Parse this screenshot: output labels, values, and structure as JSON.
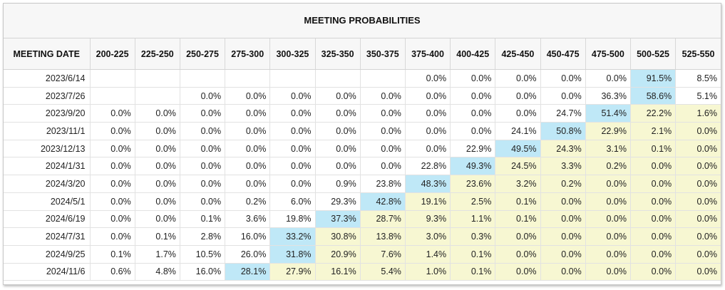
{
  "title": "MEETING PROBABILITIES",
  "colors": {
    "max_highlight": "#bfe8f7",
    "upper_highlight": "#f7f7d2",
    "header_bg": "#f7f7f7"
  },
  "chart_data": {
    "type": "table",
    "title": "MEETING PROBABILITIES",
    "columns": [
      "MEETING DATE",
      "200-225",
      "225-250",
      "250-275",
      "275-300",
      "300-325",
      "325-350",
      "350-375",
      "375-400",
      "400-425",
      "425-450",
      "450-475",
      "475-500",
      "500-525",
      "525-550"
    ],
    "rows": [
      {
        "date": "2023/6/14",
        "values": [
          "",
          "",
          "",
          "",
          "",
          "",
          "",
          "0.0%",
          "0.0%",
          "0.0%",
          "0.0%",
          "0.0%",
          "91.5%",
          "8.5%"
        ]
      },
      {
        "date": "2023/7/26",
        "values": [
          "",
          "",
          "0.0%",
          "0.0%",
          "0.0%",
          "0.0%",
          "0.0%",
          "0.0%",
          "0.0%",
          "0.0%",
          "0.0%",
          "36.3%",
          "58.6%",
          "5.1%"
        ]
      },
      {
        "date": "2023/9/20",
        "values": [
          "0.0%",
          "0.0%",
          "0.0%",
          "0.0%",
          "0.0%",
          "0.0%",
          "0.0%",
          "0.0%",
          "0.0%",
          "0.0%",
          "24.7%",
          "51.4%",
          "22.2%",
          "1.6%"
        ]
      },
      {
        "date": "2023/11/1",
        "values": [
          "0.0%",
          "0.0%",
          "0.0%",
          "0.0%",
          "0.0%",
          "0.0%",
          "0.0%",
          "0.0%",
          "0.0%",
          "24.1%",
          "50.8%",
          "22.9%",
          "2.1%",
          "0.0%"
        ]
      },
      {
        "date": "2023/12/13",
        "values": [
          "0.0%",
          "0.0%",
          "0.0%",
          "0.0%",
          "0.0%",
          "0.0%",
          "0.0%",
          "0.0%",
          "22.9%",
          "49.5%",
          "24.3%",
          "3.1%",
          "0.1%",
          "0.0%"
        ]
      },
      {
        "date": "2024/1/31",
        "values": [
          "0.0%",
          "0.0%",
          "0.0%",
          "0.0%",
          "0.0%",
          "0.0%",
          "0.0%",
          "22.8%",
          "49.3%",
          "24.5%",
          "3.3%",
          "0.2%",
          "0.0%",
          "0.0%"
        ]
      },
      {
        "date": "2024/3/20",
        "values": [
          "0.0%",
          "0.0%",
          "0.0%",
          "0.0%",
          "0.0%",
          "0.9%",
          "23.8%",
          "48.3%",
          "23.6%",
          "3.2%",
          "0.2%",
          "0.0%",
          "0.0%",
          "0.0%"
        ]
      },
      {
        "date": "2024/5/1",
        "values": [
          "0.0%",
          "0.0%",
          "0.0%",
          "0.2%",
          "6.0%",
          "29.3%",
          "42.8%",
          "19.1%",
          "2.5%",
          "0.1%",
          "0.0%",
          "0.0%",
          "0.0%",
          "0.0%"
        ]
      },
      {
        "date": "2024/6/19",
        "values": [
          "0.0%",
          "0.0%",
          "0.1%",
          "3.6%",
          "19.8%",
          "37.3%",
          "28.7%",
          "9.3%",
          "1.1%",
          "0.1%",
          "0.0%",
          "0.0%",
          "0.0%",
          "0.0%"
        ]
      },
      {
        "date": "2024/7/31",
        "values": [
          "0.0%",
          "0.1%",
          "2.8%",
          "16.0%",
          "33.2%",
          "30.8%",
          "13.8%",
          "3.0%",
          "0.3%",
          "0.0%",
          "0.0%",
          "0.0%",
          "0.0%",
          "0.0%"
        ]
      },
      {
        "date": "2024/9/25",
        "values": [
          "0.1%",
          "1.7%",
          "10.5%",
          "26.0%",
          "31.8%",
          "20.9%",
          "7.6%",
          "1.4%",
          "0.1%",
          "0.0%",
          "0.0%",
          "0.0%",
          "0.0%",
          "0.0%"
        ]
      },
      {
        "date": "2024/11/6",
        "values": [
          "0.6%",
          "4.8%",
          "16.0%",
          "28.1%",
          "27.9%",
          "16.1%",
          "5.4%",
          "1.0%",
          "0.1%",
          "0.0%",
          "0.0%",
          "0.0%",
          "0.0%",
          "0.0%"
        ]
      }
    ]
  }
}
